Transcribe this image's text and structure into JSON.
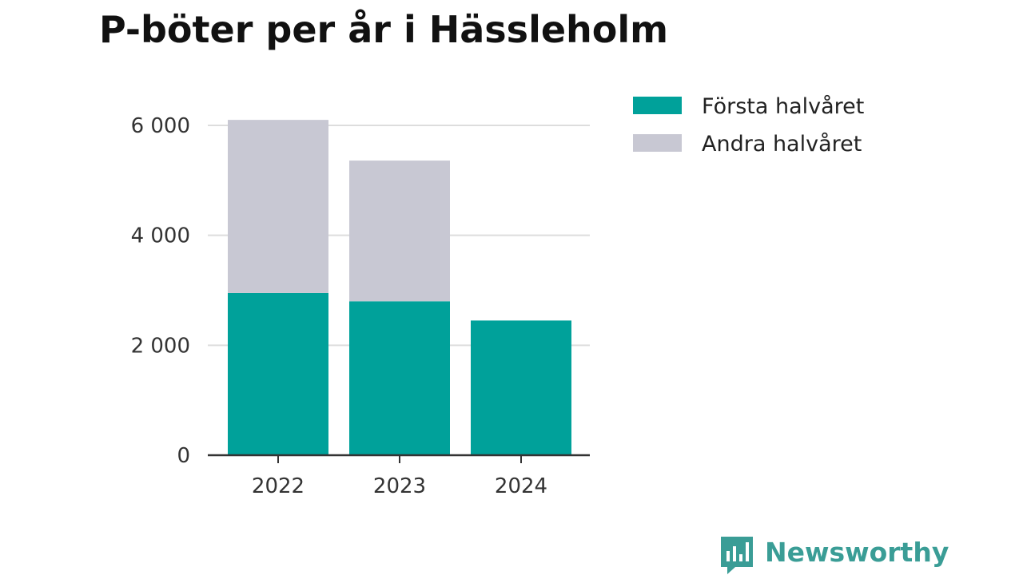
{
  "chart_data": {
    "type": "bar",
    "stacked": true,
    "title": "P-böter per år i Hässleholm",
    "categories": [
      "2022",
      "2023",
      "2024"
    ],
    "series": [
      {
        "name": "Första halvåret",
        "values": [
          2950,
          2800,
          2450
        ],
        "color": "#00a19a"
      },
      {
        "name": "Andra halvåret",
        "values": [
          3150,
          2560,
          0
        ],
        "color": "#c8c8d3"
      }
    ],
    "ylim": [
      0,
      6000
    ],
    "yticks": [
      0,
      2000,
      4000,
      6000
    ],
    "ytick_labels": [
      "0",
      "2 000",
      "4 000",
      "6 000"
    ],
    "grid": true,
    "legend_position": "right"
  },
  "branding": {
    "name": "Newsworthy",
    "color": "#3a9d96",
    "icon": "bar-chart-speech-bubble-icon"
  }
}
